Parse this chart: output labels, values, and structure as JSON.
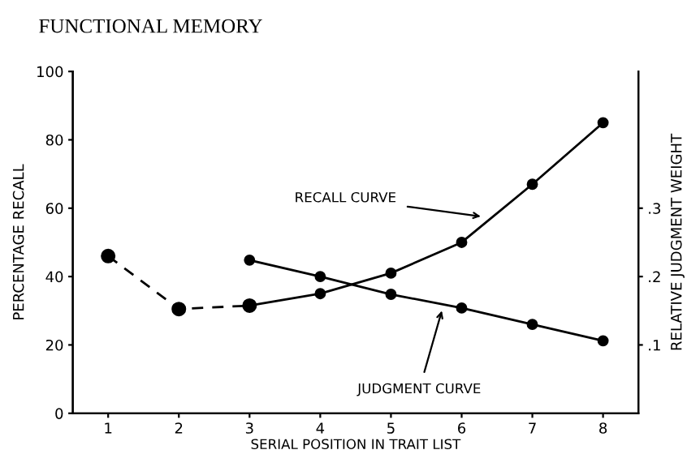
{
  "chart_data": {
    "type": "line",
    "title": "FUNCTIONAL MEMORY",
    "xlabel": "SERIAL POSITION IN TRAIT LIST",
    "ylabel": "PERCENTAGE RECALL",
    "y2label": "RELATIVE JUDGMENT WEIGHT",
    "series": [
      {
        "color": "#000000",
        "line_style": "dashed",
        "x": [
          1,
          2,
          3
        ],
        "values": [
          46,
          30.5,
          31.5
        ]
      },
      {
        "color": "#000000",
        "line_style": "solid",
        "x": [
          3,
          4,
          5,
          6,
          7,
          8
        ],
        "values": [
          31.5,
          35,
          41,
          50,
          67,
          85
        ]
      },
      {
        "color": "#000000",
        "line_style": "solid",
        "axis": "y2",
        "x": [
          3,
          4,
          5,
          6,
          7,
          8
        ],
        "values": [
          0.224,
          0.2,
          0.174,
          0.154,
          0.13,
          0.106
        ]
      }
    ],
    "xlim": [
      0.5,
      8.5
    ],
    "xticks": [
      1,
      2,
      3,
      4,
      5,
      6,
      7,
      8
    ],
    "ylim": [
      0,
      100
    ],
    "yticks": [
      0,
      20,
      40,
      60,
      80,
      100
    ],
    "y2lim": [
      0,
      0.5
    ],
    "y2ticks": [
      {
        "value": 0.1,
        "label": ".1"
      },
      {
        "value": 0.2,
        "label": ".2"
      },
      {
        "value": 0.3,
        "label": ".3"
      }
    ],
    "annotations": [
      {
        "text": "RECALL CURVE",
        "x": 6.27,
        "y": 57.6
      },
      {
        "text": "JUDGMENT CURVE",
        "x": 5.72,
        "y": 30
      }
    ],
    "marker": "circle",
    "grid": false,
    "legend": false
  }
}
